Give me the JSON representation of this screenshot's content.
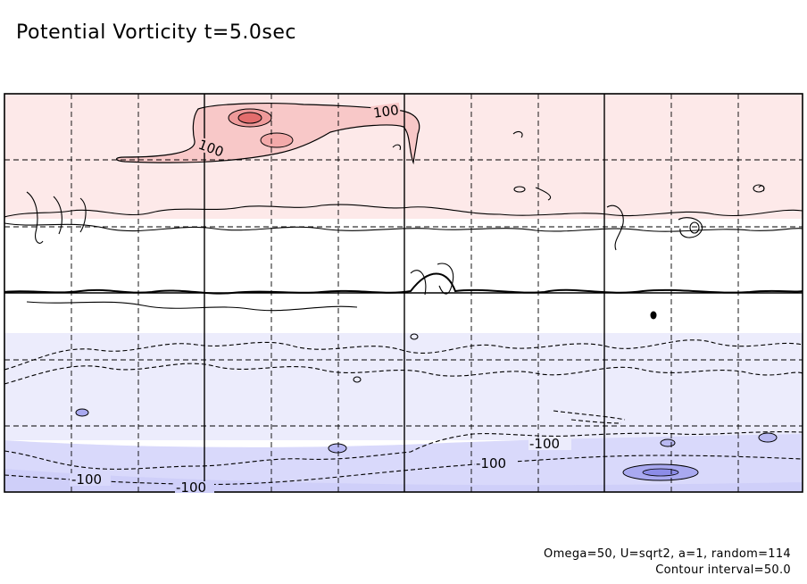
{
  "figure": {
    "title": "Potential Vorticity t=5.0sec",
    "footer_params": "Omega=50, U=sqrt2, a=1, random=114",
    "footer_interval": "Contour interval=50.0",
    "contour_labels": {
      "positive_1": "100",
      "positive_2": "100",
      "negative_1": "-100",
      "negative_2": "-100",
      "negative_3": "-100",
      "negative_4": "-100"
    },
    "colors": {
      "positive_fill": "#fde9e9",
      "positive_mid": "#f8c8c8",
      "positive_strong": "#ee8f8f",
      "negative_fill": "#ececfc",
      "negative_mid": "#d2d2fb",
      "negative_strong": "#a9a9f0"
    }
  }
}
